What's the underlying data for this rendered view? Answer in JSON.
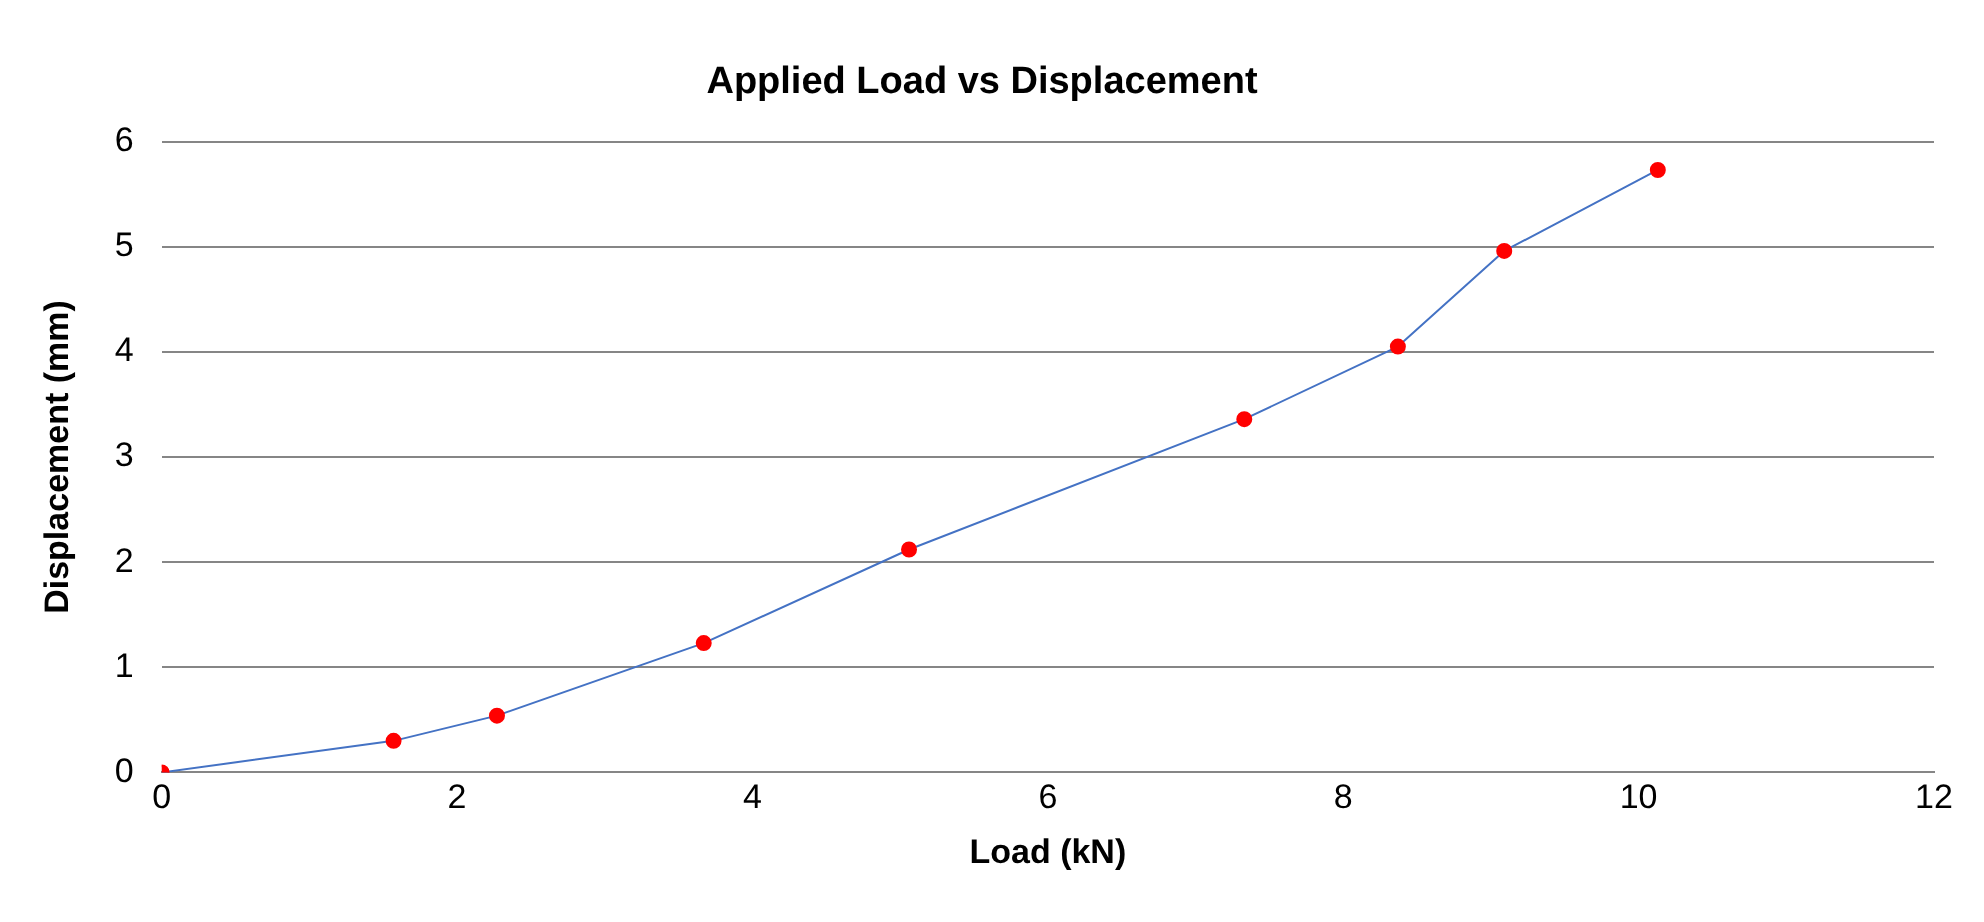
{
  "chart_data": {
    "type": "line",
    "title": "Applied Load vs Displacement",
    "xlabel": "Load (kN)",
    "ylabel": "Displacement (mm)",
    "series": [
      {
        "type": "line",
        "color": "#4472c4",
        "colors": [
          "#ff0000",
          "#ff0000",
          "#ff0000",
          "#ff0000",
          "#ff0000",
          "#ff0000",
          "#ff0000",
          "#ff0000",
          "#ff0000"
        ],
        "x": [
          0,
          1.57,
          2.27,
          3.67,
          5.06,
          7.33,
          8.37,
          9.09,
          10.13
        ],
        "values": [
          0,
          0.3,
          0.54,
          1.23,
          2.12,
          3.36,
          4.05,
          4.96,
          5.73
        ]
      }
    ],
    "xlim": [
      0,
      12
    ],
    "xticks": [
      0,
      2,
      4,
      6,
      8,
      10,
      12
    ],
    "ylim": [
      0,
      6
    ],
    "yticks": [
      0,
      1,
      2,
      3,
      4,
      5,
      6
    ],
    "grid": "y",
    "legend": false,
    "marker": "circle",
    "line_style": "solid"
  }
}
